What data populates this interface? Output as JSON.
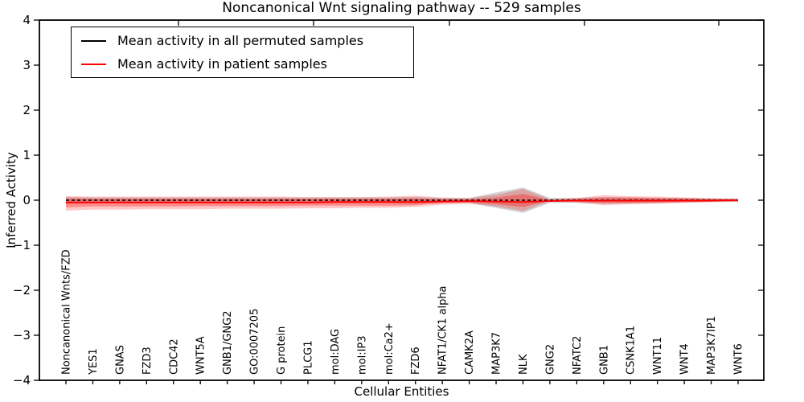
{
  "chart_data": {
    "type": "line",
    "title": "Noncanonical Wnt signaling pathway -- 529 samples",
    "xlabel": "Cellular Entities",
    "ylabel": "Inferred Activity",
    "ylim": [
      -4,
      4
    ],
    "grid": false,
    "legend_position": "upper left",
    "ytick_values": [
      4,
      3,
      2,
      1,
      0,
      -1,
      -2,
      -3,
      -4
    ],
    "ytick_labels": [
      "4",
      "3",
      "2",
      "1",
      "0",
      "−1",
      "−2",
      "−3",
      "−4"
    ],
    "categories": [
      "Noncanonical Wnts/FZD",
      "YES1",
      "GNAS",
      "FZD3",
      "CDC42",
      "WNT5A",
      "GNB1/GNG2",
      "GO:0007205",
      "G protein",
      "PLCG1",
      "mol:DAG",
      "mol:IP3",
      "mol:Ca2+",
      "FZD6",
      "NFAT1/CK1 alpha",
      "CAMK2A",
      "MAP3K7",
      "NLK",
      "GNG2",
      "NFATC2",
      "GNB1",
      "CSNK1A1",
      "WNT11",
      "WNT4",
      "MAP3K7IP1",
      "WNT6"
    ],
    "series": [
      {
        "name": "Mean activity in all permuted samples",
        "color": "#000000",
        "line_style": "dashed",
        "values": [
          0,
          0,
          0,
          0,
          0,
          0,
          0,
          0,
          0,
          0,
          0,
          0,
          0,
          0,
          0,
          0,
          0,
          0,
          0,
          0,
          0,
          0,
          0,
          0,
          0,
          0
        ]
      },
      {
        "name": "Mean activity in patient samples",
        "color": "#ff0000",
        "line_style": "solid",
        "values": [
          -0.05,
          -0.05,
          -0.05,
          -0.05,
          -0.05,
          -0.05,
          -0.05,
          -0.05,
          -0.05,
          -0.05,
          -0.04,
          -0.04,
          -0.04,
          -0.04,
          -0.03,
          -0.02,
          -0.03,
          -0.04,
          -0.02,
          -0.01,
          -0.01,
          -0.01,
          -0.01,
          -0.01,
          -0.01,
          0
        ]
      }
    ],
    "bands": [
      {
        "name": "permuted-samples-std-band",
        "color": "#999999",
        "opacity": 0.45,
        "upper": [
          0.07,
          0.06,
          0.06,
          0.06,
          0.06,
          0.06,
          0.06,
          0.06,
          0.06,
          0.06,
          0.06,
          0.06,
          0.06,
          0.07,
          0.05,
          0.05,
          0.17,
          0.28,
          0.05,
          0.05,
          0.07,
          0.06,
          0.05,
          0.05,
          0.04,
          0.04
        ],
        "lower": [
          -0.08,
          -0.07,
          -0.07,
          -0.07,
          -0.07,
          -0.07,
          -0.07,
          -0.07,
          -0.07,
          -0.07,
          -0.07,
          -0.07,
          -0.07,
          -0.08,
          -0.06,
          -0.06,
          -0.17,
          -0.28,
          -0.06,
          -0.06,
          -0.08,
          -0.07,
          -0.06,
          -0.05,
          -0.04,
          -0.04
        ]
      },
      {
        "name": "patient-samples-std-band-outer",
        "color": "#ff0000",
        "opacity": 0.22,
        "upper": [
          0.09,
          0.08,
          0.08,
          0.08,
          0.08,
          0.08,
          0.08,
          0.08,
          0.08,
          0.07,
          0.07,
          0.07,
          0.08,
          0.1,
          0.06,
          0.05,
          0.12,
          0.25,
          0.02,
          0.05,
          0.11,
          0.09,
          0.08,
          0.06,
          0.04,
          0.03
        ],
        "lower": [
          -0.23,
          -0.21,
          -0.21,
          -0.2,
          -0.2,
          -0.2,
          -0.19,
          -0.19,
          -0.19,
          -0.18,
          -0.18,
          -0.17,
          -0.17,
          -0.15,
          -0.1,
          -0.08,
          -0.14,
          -0.24,
          -0.02,
          -0.05,
          -0.11,
          -0.09,
          -0.08,
          -0.06,
          -0.04,
          -0.03
        ]
      },
      {
        "name": "patient-samples-std-band-inner",
        "color": "#ff0000",
        "opacity": 0.3,
        "upper": [
          0.04,
          0.03,
          0.03,
          0.03,
          0.03,
          0.03,
          0.03,
          0.03,
          0.03,
          0.03,
          0.03,
          0.03,
          0.03,
          0.04,
          0.02,
          0.02,
          0.06,
          0.14,
          0.01,
          0.03,
          0.06,
          0.06,
          0.05,
          0.04,
          0.03,
          0.02
        ],
        "lower": [
          -0.16,
          -0.14,
          -0.14,
          -0.14,
          -0.14,
          -0.13,
          -0.13,
          -0.13,
          -0.13,
          -0.12,
          -0.12,
          -0.12,
          -0.12,
          -0.11,
          -0.06,
          -0.05,
          -0.09,
          -0.15,
          -0.01,
          -0.03,
          -0.06,
          -0.06,
          -0.05,
          -0.04,
          -0.03,
          -0.02
        ]
      }
    ]
  }
}
